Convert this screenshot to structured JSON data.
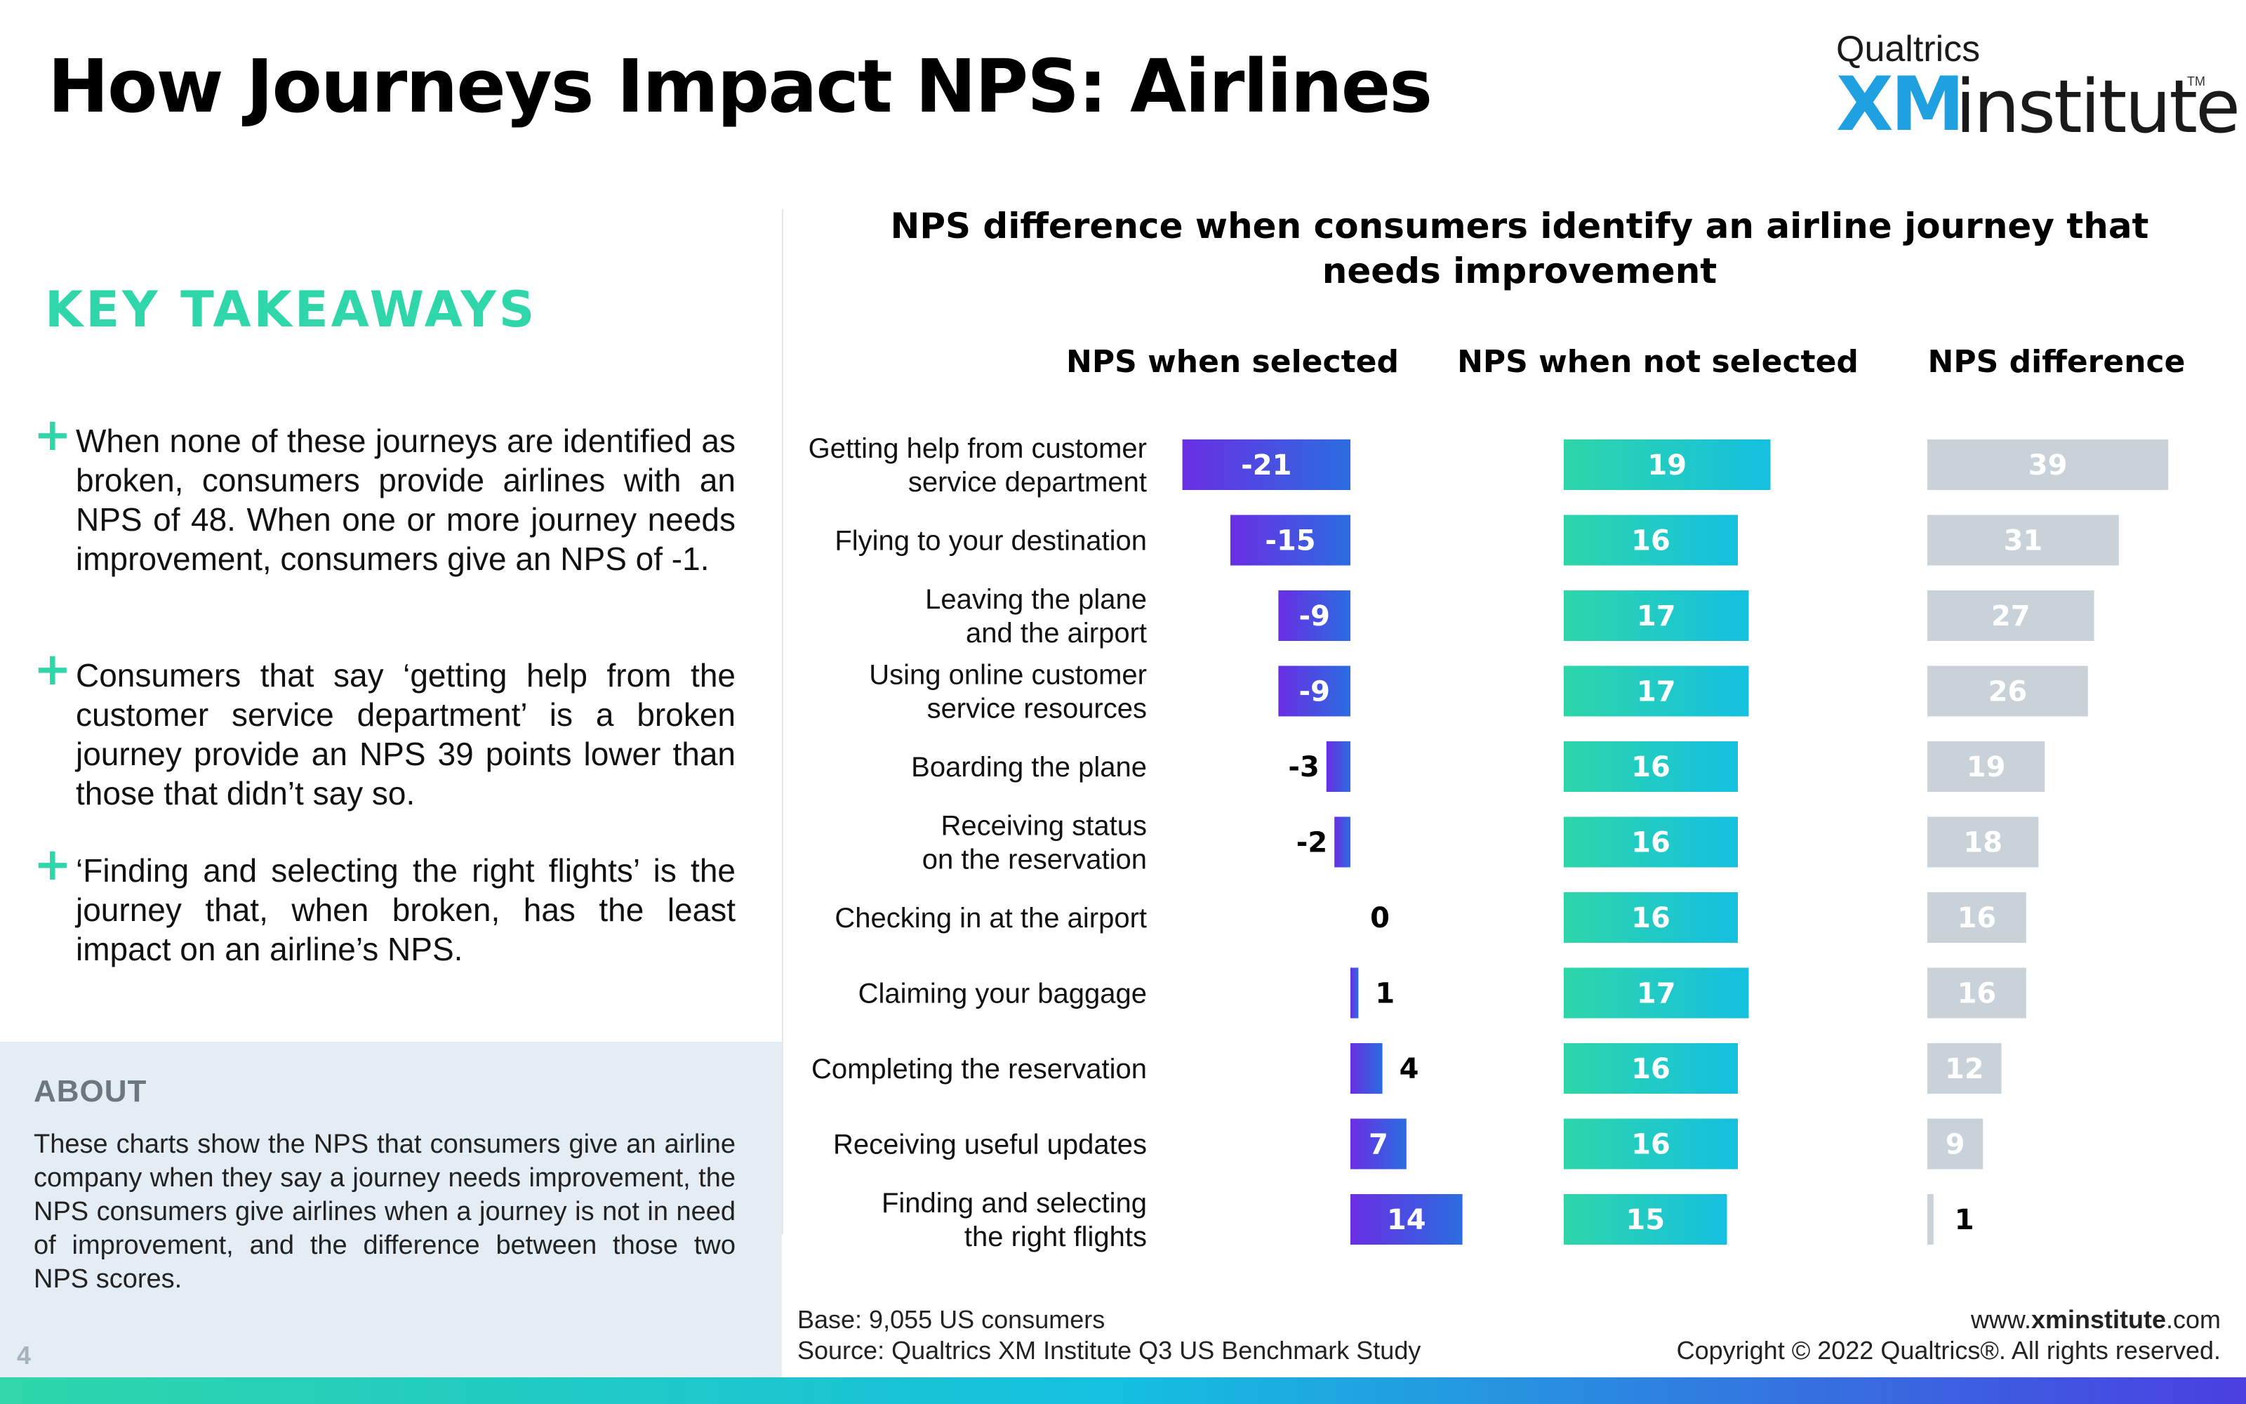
{
  "title": "How Journeys Impact NPS: Airlines",
  "logo": {
    "top": "Qualtrics",
    "xm": "XM",
    "institute": "institute",
    "tm": "TM"
  },
  "key_takeaways": {
    "heading": "KEY TAKEAWAYS",
    "items": [
      "When none of these journeys are identified as broken, consumers provide airlines with an NPS of 48. When one or more journey needs improvement, consumers give an NPS of -1.",
      "Consumers that say ‘getting help from the customer service department’ is a broken journey provide an NPS 39 points lower than those that didn’t say so.",
      "‘Finding and selecting the right flights’ is the journey that, when broken, has the least impact on an airline’s NPS."
    ]
  },
  "about": {
    "heading": "ABOUT",
    "text": "These charts show the NPS that consumers give an airline company when they say a journey needs improvement, the NPS consumers give airlines when a journey is not in need of improvement, and the difference between those two NPS scores."
  },
  "page_number": "4",
  "footer": {
    "base": "Base: 9,055 US consumers",
    "source": "Source: Qualtrics XM Institute Q3 US Benchmark Study",
    "website_prefix": "www.",
    "website_bold": "xminstitute",
    "website_suffix": ".com",
    "copyright": "Copyright © 2022 Qualtrics®. All rights reserved."
  },
  "colors": {
    "accent_teal": "#2ed6a9",
    "selected_start": "#6a2ee3",
    "selected_end": "#2a6de0",
    "not_selected_start": "#2ed6a9",
    "not_selected_end": "#14bfe0",
    "difference": "#c9d2d9"
  },
  "chart_data": {
    "type": "bar",
    "title": "NPS difference when consumers identify an airline journey that needs improvement",
    "categories": [
      "Getting help from customer service department",
      "Flying to your destination",
      "Leaving the plane and the airport",
      "Using online customer service resources",
      "Boarding the plane",
      "Receiving status on the reservation",
      "Checking in at the airport",
      "Claiming your baggage",
      "Completing the reservation",
      "Receiving useful updates",
      "Finding and selecting the right flights"
    ],
    "series": [
      {
        "name": "NPS when selected",
        "values": [
          -21,
          -15,
          -9,
          -9,
          -3,
          -2,
          0,
          1,
          4,
          7,
          14
        ]
      },
      {
        "name": "NPS when not selected",
        "values": [
          19,
          16,
          17,
          17,
          16,
          16,
          16,
          17,
          16,
          16,
          15
        ]
      },
      {
        "name": "NPS difference",
        "values": [
          39,
          31,
          27,
          26,
          19,
          18,
          16,
          16,
          12,
          9,
          1
        ]
      }
    ]
  }
}
